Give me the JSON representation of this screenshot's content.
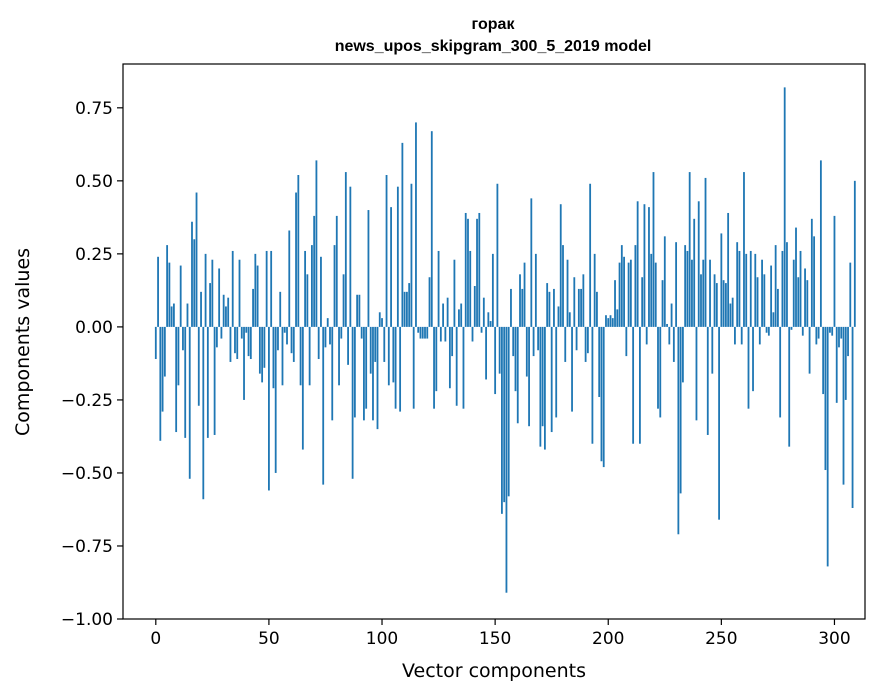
{
  "chart_data": {
    "type": "bar",
    "title_line1": "горак",
    "title_line2": "news_upos_skipgram_300_5_2019 model",
    "xlabel": "Vector components",
    "ylabel": "Components values",
    "xlim": [
      -14.5,
      313.5
    ],
    "ylim": [
      -1.0,
      0.9
    ],
    "xticks": [
      0,
      50,
      100,
      150,
      200,
      250,
      300
    ],
    "xtick_labels": [
      "0",
      "50",
      "100",
      "150",
      "200",
      "250",
      "300"
    ],
    "yticks": [
      -1.0,
      -0.75,
      -0.5,
      -0.25,
      0.0,
      0.25,
      0.5,
      0.75
    ],
    "ytick_labels": [
      "−1.00",
      "−0.75",
      "−0.50",
      "−0.25",
      "0.00",
      "0.25",
      "0.50",
      "0.75"
    ],
    "bar_color": "#1f77b4",
    "values": [
      -0.11,
      0.24,
      -0.39,
      -0.29,
      -0.17,
      0.28,
      0.22,
      0.07,
      0.08,
      -0.36,
      -0.2,
      0.21,
      -0.08,
      -0.38,
      0.08,
      -0.52,
      0.36,
      0.3,
      0.46,
      -0.27,
      0.12,
      -0.59,
      0.25,
      -0.38,
      0.15,
      0.23,
      -0.37,
      -0.07,
      0.2,
      -0.04,
      0.11,
      0.07,
      0.1,
      -0.12,
      0.26,
      -0.09,
      -0.11,
      0.23,
      -0.04,
      -0.25,
      -0.02,
      -0.1,
      -0.11,
      0.13,
      0.25,
      0.21,
      -0.16,
      -0.19,
      -0.14,
      0.26,
      -0.56,
      0.26,
      -0.21,
      -0.5,
      -0.08,
      0.12,
      -0.2,
      -0.02,
      -0.06,
      0.33,
      -0.09,
      -0.12,
      0.46,
      0.52,
      -0.2,
      -0.42,
      0.26,
      0.18,
      -0.2,
      0.28,
      0.38,
      0.57,
      -0.11,
      0.24,
      -0.54,
      -0.07,
      0.03,
      -0.06,
      -0.32,
      0.28,
      0.38,
      -0.2,
      -0.04,
      0.18,
      0.53,
      -0.13,
      0.48,
      -0.52,
      -0.31,
      0.11,
      0.11,
      -0.04,
      -0.32,
      -0.28,
      0.4,
      -0.16,
      -0.32,
      -0.12,
      -0.35,
      0.05,
      0.03,
      -0.12,
      0.52,
      -0.2,
      0.41,
      -0.19,
      -0.28,
      0.48,
      -0.29,
      0.63,
      0.12,
      0.12,
      0.15,
      0.49,
      -0.28,
      0.7,
      -0.02,
      -0.04,
      -0.04,
      -0.04,
      -0.04,
      0.17,
      0.67,
      -0.28,
      -0.22,
      0.26,
      -0.05,
      0.08,
      -0.05,
      0.1,
      -0.21,
      -0.1,
      0.23,
      -0.27,
      0.06,
      0.08,
      -0.28,
      0.39,
      0.37,
      0.26,
      -0.05,
      0.14,
      0.37,
      0.39,
      -0.02,
      0.1,
      -0.18,
      0.05,
      0.02,
      0.25,
      -0.23,
      0.49,
      -0.16,
      -0.64,
      -0.6,
      -0.91,
      -0.58,
      0.13,
      -0.1,
      -0.22,
      -0.33,
      0.18,
      0.13,
      0.22,
      -0.17,
      -0.34,
      0.44,
      -0.1,
      0.25,
      -0.08,
      -0.41,
      -0.34,
      -0.42,
      0.15,
      0.12,
      -0.36,
      0.13,
      -0.31,
      0.07,
      0.42,
      0.28,
      -0.12,
      0.23,
      0.05,
      -0.29,
      0.17,
      -0.08,
      0.13,
      0.13,
      0.18,
      -0.12,
      -0.09,
      0.49,
      -0.4,
      0.25,
      0.12,
      -0.24,
      -0.46,
      -0.48,
      0.04,
      0.03,
      0.04,
      0.03,
      0.16,
      0.06,
      0.22,
      0.28,
      0.24,
      -0.1,
      0.22,
      0.23,
      -0.4,
      0.28,
      0.43,
      -0.4,
      0.17,
      0.42,
      -0.06,
      0.41,
      0.25,
      0.53,
      0.22,
      -0.28,
      -0.31,
      0.16,
      0.31,
      0.01,
      -0.06,
      0.08,
      -0.12,
      0.29,
      -0.71,
      -0.57,
      -0.19,
      0.28,
      0.26,
      0.53,
      0.23,
      0.37,
      -0.32,
      0.43,
      0.18,
      0.23,
      0.51,
      -0.37,
      0.23,
      -0.16,
      0.18,
      0.15,
      -0.66,
      0.32,
      0.16,
      0.15,
      0.39,
      0.08,
      0.1,
      -0.06,
      0.29,
      0.26,
      -0.06,
      0.53,
      0.25,
      -0.28,
      0.26,
      -0.22,
      0.25,
      0.17,
      -0.06,
      0.23,
      0.18,
      -0.02,
      -0.03,
      0.21,
      0.05,
      0.28,
      0.13,
      -0.31,
      0.26,
      0.82,
      0.29,
      -0.41,
      -0.01,
      0.23,
      0.34,
      0.17,
      0.26,
      -0.03,
      0.2,
      0.16,
      -0.16,
      0.37,
      0.31,
      -0.06,
      -0.04,
      0.57,
      -0.23,
      -0.49,
      -0.82,
      -0.02,
      -0.03,
      0.38,
      -0.26,
      -0.07,
      -0.04,
      -0.54,
      -0.25,
      -0.1,
      0.22,
      -0.62,
      0.5
    ]
  }
}
